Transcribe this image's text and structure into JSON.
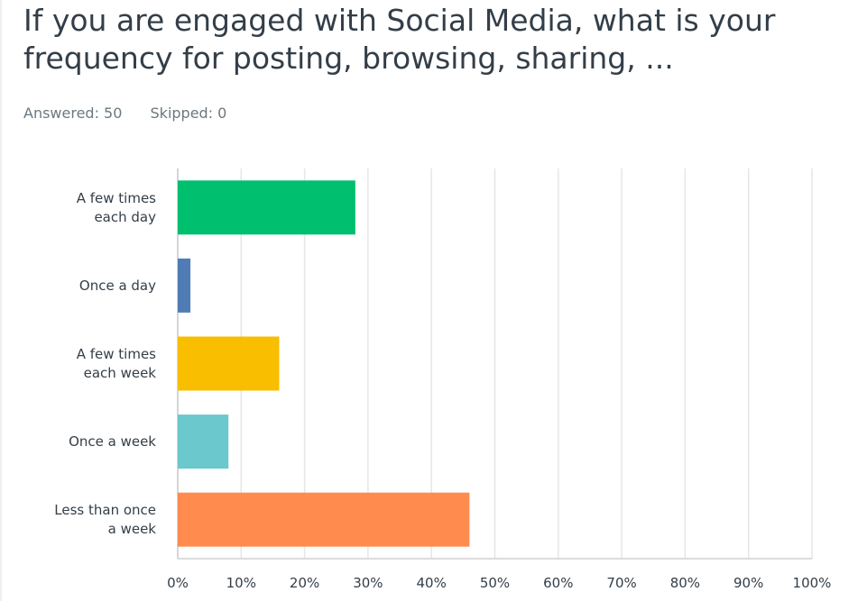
{
  "header": {
    "title": "If you are engaged with Social Media, what is your frequency for posting, browsing, sharing, ...",
    "answered": "Answered: 50",
    "skipped": "Skipped: 0"
  },
  "chart_data": {
    "type": "bar",
    "orientation": "horizontal",
    "categories": [
      [
        "A few times",
        "each day"
      ],
      [
        "Once a day"
      ],
      [
        "A few times",
        "each week"
      ],
      [
        "Once a week"
      ],
      [
        "Less than once",
        "a week"
      ]
    ],
    "values": [
      28,
      2,
      16,
      8,
      46
    ],
    "colors": [
      "#00bf6f",
      "#507cb6",
      "#f9be00",
      "#6bc8cd",
      "#ff8b4f"
    ],
    "xlim": [
      0,
      100
    ],
    "xticks": [
      "0%",
      "10%",
      "20%",
      "30%",
      "40%",
      "50%",
      "60%",
      "70%",
      "80%",
      "90%",
      "100%"
    ],
    "grid": true
  }
}
